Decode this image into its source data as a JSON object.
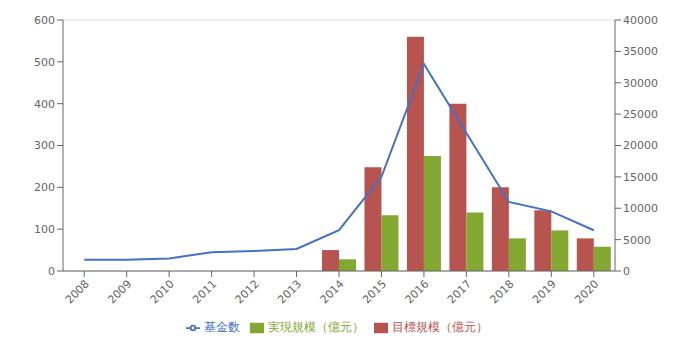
{
  "chart_data": {
    "type": "bar",
    "categories": [
      "2008",
      "2009",
      "2010",
      "2011",
      "2012",
      "2013",
      "2014",
      "2015",
      "2016",
      "2017",
      "2018",
      "2019",
      "2020"
    ],
    "series": [
      {
        "name": "目標規模（億元）",
        "type": "bar",
        "color": "#b85450",
        "values": [
          0,
          0,
          0,
          0,
          0,
          0,
          50,
          248,
          560,
          400,
          200,
          145,
          78
        ]
      },
      {
        "name": "実現規模（億元）",
        "type": "bar",
        "color": "#82a832",
        "values": [
          0,
          0,
          0,
          0,
          0,
          0,
          28,
          133,
          275,
          140,
          78,
          97,
          58
        ]
      },
      {
        "name": "基金数",
        "type": "line",
        "axis": "y2",
        "color": "#4472c4",
        "values": [
          1800,
          1800,
          2000,
          3000,
          3200,
          3500,
          6500,
          15000,
          33000,
          22000,
          11000,
          9500,
          6500
        ]
      }
    ],
    "ylim": [
      0,
      600
    ],
    "yticks": [
      0,
      100,
      200,
      300,
      400,
      500,
      600
    ],
    "y2lim": [
      0,
      40000
    ],
    "y2ticks": [
      0,
      5000,
      10000,
      15000,
      20000,
      25000,
      30000,
      35000,
      40000
    ],
    "grid": true,
    "legend": "bottom"
  }
}
